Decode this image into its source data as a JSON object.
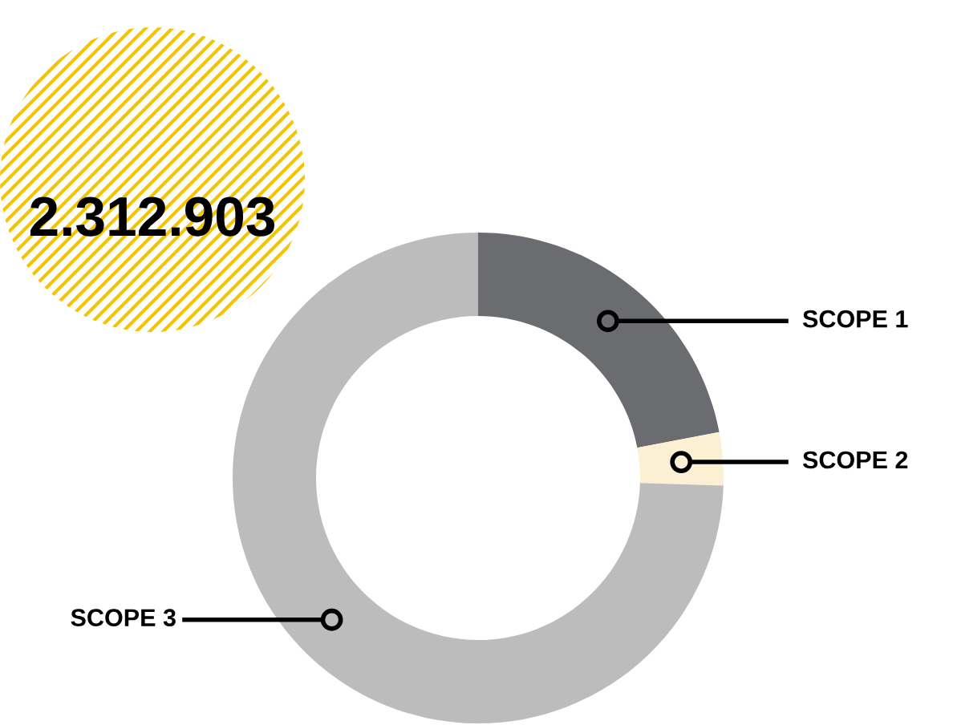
{
  "chart_data": {
    "type": "donut",
    "categories": [
      "SCOPE 1",
      "SCOPE 2",
      "SCOPE 3"
    ],
    "values": [
      22,
      3.5,
      74.5
    ],
    "colors": [
      "#6b6c70",
      "#fbefd4",
      "#bbbcbb"
    ],
    "annotations": [
      "2.312.903"
    ]
  }
}
